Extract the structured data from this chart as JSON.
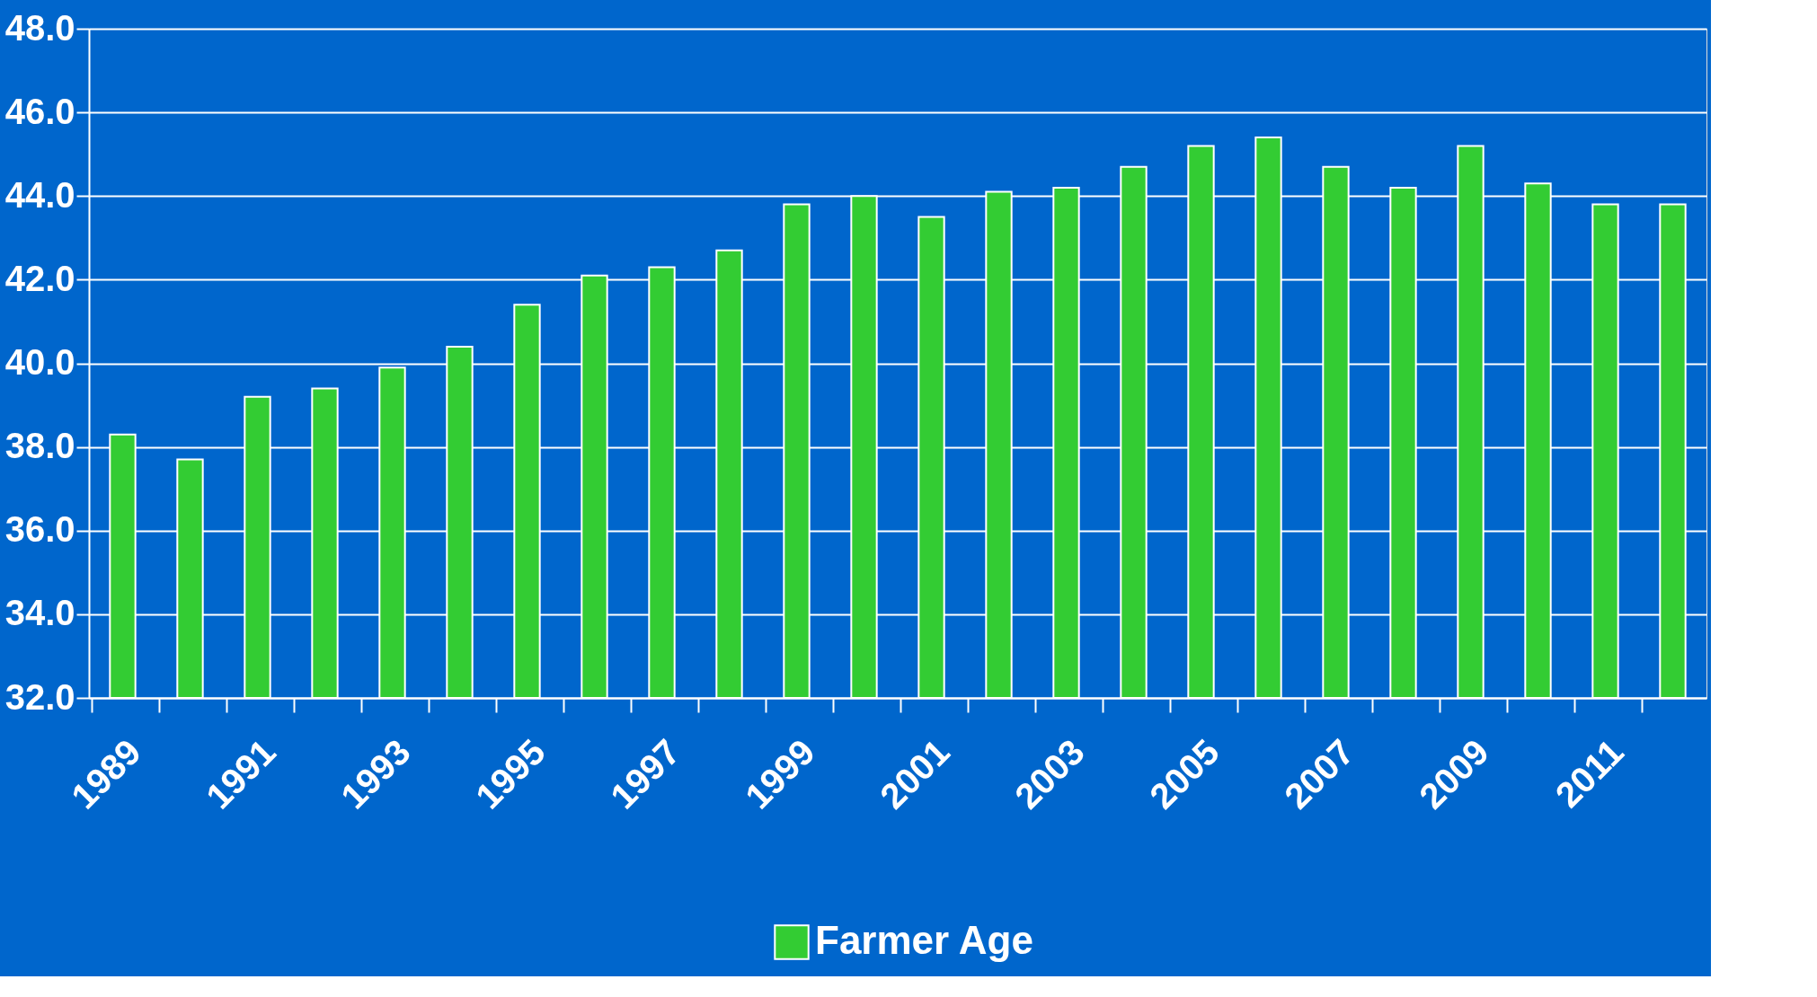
{
  "chart_data": {
    "type": "bar",
    "categories": [
      "1989",
      null,
      "1991",
      null,
      "1993",
      null,
      "1995",
      null,
      "1997",
      null,
      "1999",
      null,
      "2001",
      null,
      "2003",
      null,
      "2005",
      null,
      "2007",
      null,
      "2009",
      null,
      "2011",
      null
    ],
    "series": [
      {
        "name": "Farmer Age",
        "color": "#33cc33",
        "values": [
          38.3,
          37.7,
          39.2,
          39.4,
          39.9,
          40.4,
          41.4,
          42.1,
          42.3,
          42.7,
          43.8,
          44.0,
          43.5,
          44.1,
          44.2,
          44.7,
          45.2,
          45.4,
          44.7,
          44.2,
          45.2,
          44.3,
          43.8,
          43.8
        ]
      }
    ],
    "ylim": [
      32,
      48
    ],
    "yticks": [
      {
        "value": 32,
        "label": "32.0"
      },
      {
        "value": 34,
        "label": "34.0"
      },
      {
        "value": 36,
        "label": "36.0"
      },
      {
        "value": 38,
        "label": "38.0"
      },
      {
        "value": 40,
        "label": "40.0"
      },
      {
        "value": 42,
        "label": "42.0"
      },
      {
        "value": 44,
        "label": "44.0"
      },
      {
        "value": 46,
        "label": "46.0"
      },
      {
        "value": 48,
        "label": "48.0"
      }
    ],
    "grid": "y",
    "legend": "bottom"
  }
}
